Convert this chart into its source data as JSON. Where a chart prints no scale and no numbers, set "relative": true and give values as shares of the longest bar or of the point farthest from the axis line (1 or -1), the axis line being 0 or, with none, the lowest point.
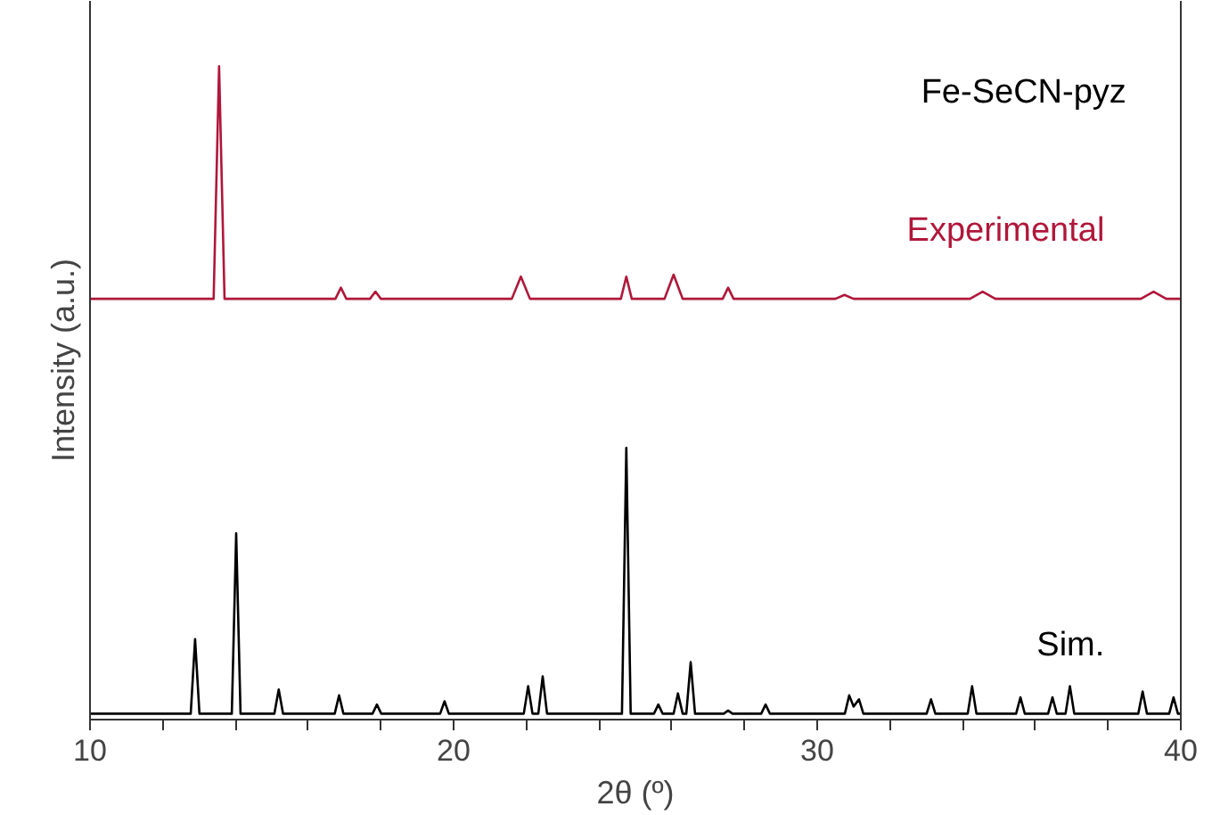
{
  "chart_data": {
    "type": "line",
    "relative": true,
    "xlabel": "2θ (º)",
    "ylabel": "Intensity (a.u.)",
    "annotations": [
      "Fe-SeCN-pyz"
    ],
    "xlim": [
      10,
      40
    ],
    "xticks": [
      10,
      {
        "value": 12,
        "label": null
      },
      {
        "value": 14,
        "label": null
      },
      {
        "value": 16,
        "label": null
      },
      {
        "value": 18,
        "label": null
      },
      20,
      {
        "value": 22,
        "label": null
      },
      {
        "value": 24,
        "label": null
      },
      {
        "value": 26,
        "label": null
      },
      {
        "value": 28,
        "label": null
      },
      30,
      {
        "value": 32,
        "label": null
      },
      {
        "value": 34,
        "label": null
      },
      {
        "value": 36,
        "label": null
      },
      {
        "value": 38,
        "label": null
      },
      40
    ],
    "grid": false,
    "series": [
      {
        "name": "Experimental",
        "color": "#b0173a",
        "x": [
          10,
          13.4,
          13.55,
          13.7,
          16.75,
          16.9,
          17.05,
          17.7,
          17.85,
          18.0,
          21.6,
          21.85,
          22.1,
          24.6,
          24.75,
          24.9,
          25.8,
          26.05,
          26.3,
          27.4,
          27.55,
          27.7,
          30.5,
          30.75,
          31.0,
          34.2,
          34.55,
          34.9,
          38.9,
          39.25,
          39.6,
          40
        ],
        "values": [
          0.644,
          0.644,
          1.0,
          0.644,
          0.644,
          0.661,
          0.644,
          0.644,
          0.655,
          0.644,
          0.644,
          0.678,
          0.644,
          0.644,
          0.678,
          0.644,
          0.644,
          0.681,
          0.644,
          0.644,
          0.661,
          0.644,
          0.644,
          0.65,
          0.644,
          0.644,
          0.655,
          0.644,
          0.644,
          0.655,
          0.644,
          0.644
        ]
      },
      {
        "name": "Sim.",
        "color": "#000000",
        "x": [
          10,
          12.77,
          12.89,
          13.01,
          13.9,
          14.02,
          14.14,
          15.07,
          15.19,
          15.31,
          16.73,
          16.85,
          16.97,
          17.77,
          17.89,
          18.01,
          19.63,
          19.75,
          19.87,
          21.93,
          22.05,
          22.17,
          22.33,
          22.45,
          22.57,
          24.63,
          24.75,
          24.87,
          25.51,
          25.63,
          25.75,
          26.05,
          26.17,
          26.3,
          26.4,
          26.52,
          26.64,
          27.43,
          27.55,
          27.67,
          28.46,
          28.58,
          28.7,
          30.76,
          30.88,
          31.0,
          31.15,
          31.27,
          33.01,
          33.13,
          33.25,
          34.14,
          34.26,
          34.38,
          35.47,
          35.59,
          35.71,
          36.35,
          36.47,
          36.59,
          36.83,
          36.95,
          37.07,
          38.83,
          38.95,
          39.07,
          39.68,
          39.8,
          39.92,
          40
        ],
        "values": [
          0.009,
          0.009,
          0.123,
          0.009,
          0.009,
          0.285,
          0.009,
          0.009,
          0.046,
          0.009,
          0.009,
          0.037,
          0.009,
          0.009,
          0.023,
          0.009,
          0.009,
          0.028,
          0.009,
          0.009,
          0.051,
          0.009,
          0.009,
          0.066,
          0.009,
          0.009,
          0.416,
          0.009,
          0.009,
          0.023,
          0.009,
          0.009,
          0.04,
          0.009,
          0.009,
          0.088,
          0.009,
          0.009,
          0.014,
          0.009,
          0.009,
          0.023,
          0.009,
          0.009,
          0.037,
          0.02,
          0.031,
          0.009,
          0.009,
          0.031,
          0.009,
          0.009,
          0.051,
          0.009,
          0.009,
          0.034,
          0.009,
          0.009,
          0.034,
          0.009,
          0.009,
          0.051,
          0.009,
          0.009,
          0.043,
          0.009,
          0.009,
          0.034,
          0.009,
          0.009
        ]
      }
    ]
  }
}
